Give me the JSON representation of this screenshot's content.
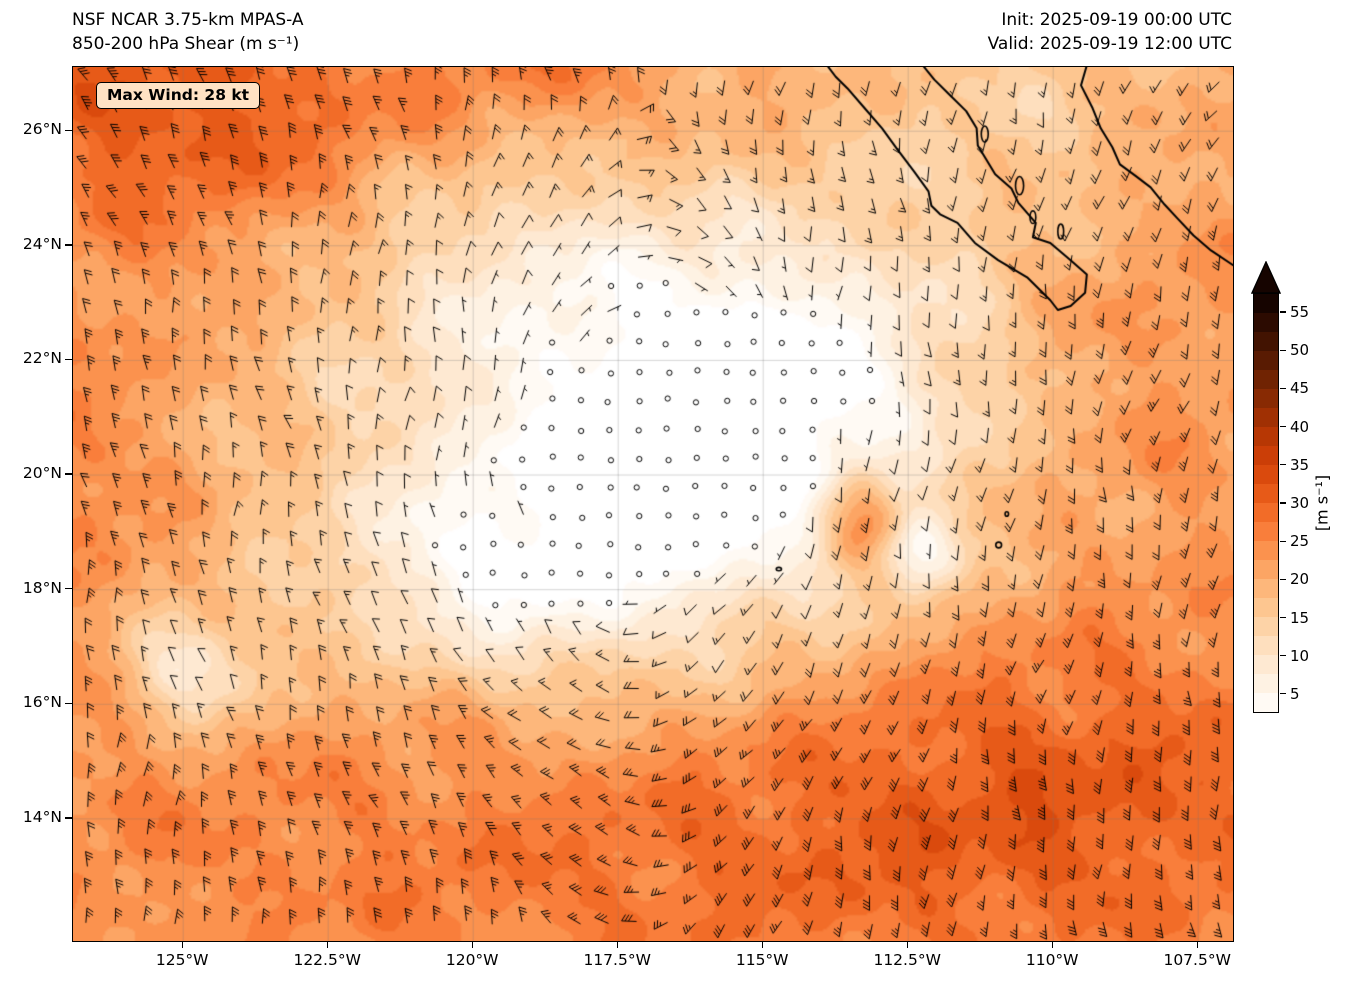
{
  "header": {
    "title_line1": "NSF NCAR 3.75-km MPAS-A",
    "title_line2": "850-200 hPa Shear (m s⁻¹)",
    "init_label": "Init: 2025-09-19 00:00 UTC",
    "valid_label": "Valid: 2025-09-19 12:00 UTC"
  },
  "badge": {
    "max_wind": "Max Wind: 28 kt",
    "bg": "#ffe2c4"
  },
  "axes": {
    "lat_ticks": [
      {
        "value": 26,
        "label": "26°N"
      },
      {
        "value": 24,
        "label": "24°N"
      },
      {
        "value": 22,
        "label": "22°N"
      },
      {
        "value": 20,
        "label": "20°N"
      },
      {
        "value": 18,
        "label": "18°N"
      },
      {
        "value": 16,
        "label": "16°N"
      },
      {
        "value": 14,
        "label": "14°N"
      }
    ],
    "lon_ticks": [
      {
        "value": -125,
        "label": "125°W"
      },
      {
        "value": -122.5,
        "label": "122.5°W"
      },
      {
        "value": -120,
        "label": "120°W"
      },
      {
        "value": -117.5,
        "label": "117.5°W"
      },
      {
        "value": -115,
        "label": "115°W"
      },
      {
        "value": -112.5,
        "label": "112.5°W"
      },
      {
        "value": -110,
        "label": "110°W"
      },
      {
        "value": -107.5,
        "label": "107.5°W"
      }
    ]
  },
  "colorbar": {
    "label": "[m s⁻¹]",
    "unit": "m s⁻¹",
    "ticks": [
      55,
      50,
      45,
      40,
      35,
      30,
      25,
      20,
      15,
      10,
      5
    ],
    "vmin": 2.5,
    "vmax": 57.5,
    "level_step": 2.5,
    "extend": "max",
    "colors": [
      "#ffffff",
      "#fffaf4",
      "#fef2e3",
      "#fee9d2",
      "#fedfbe",
      "#fdd3a7",
      "#fdc690",
      "#fdb77b",
      "#fca564",
      "#fb924e",
      "#f97e3b",
      "#f26c28",
      "#e75a18",
      "#da4a0d",
      "#cb3e07",
      "#b73704",
      "#a03003",
      "#882a03",
      "#702302",
      "#591b02",
      "#421301",
      "#2c0b01",
      "#160400"
    ]
  },
  "chart_data": {
    "type": "heatmap",
    "title": "850-200 hPa Shear",
    "units": "m s⁻¹",
    "model": "NSF NCAR 3.75-km MPAS-A",
    "init": "2025-09-19 00:00 UTC",
    "valid": "2025-09-19 12:00 UTC",
    "max_wind_kt": 28,
    "lon_range": [
      -126.9,
      -106.9
    ],
    "lat_range": [
      11.87,
      27.12
    ],
    "background_shear_ms": 20,
    "features": [
      {
        "name": "shear minimum around storm environment",
        "lon": -117.3,
        "lat": 19.7,
        "value_ms": 4
      },
      {
        "name": "low-shear pocket southwest",
        "lon": -124.9,
        "lat": 16.6,
        "value_ms": 6
      },
      {
        "name": "low-shear patch east of center",
        "lon": -112.3,
        "lat": 18.6,
        "value_ms": 8
      },
      {
        "name": "local shear maximum",
        "lon": -113.3,
        "lat": 19.3,
        "value_ms": 33
      },
      {
        "name": "high-shear band across south",
        "lon": -116.0,
        "lat": 14.0,
        "value_ms": 27
      },
      {
        "name": "high-shear region northwest corner",
        "lon": -125.5,
        "lat": 26.8,
        "value_ms": 30
      },
      {
        "name": "lighter shear over Gulf of California",
        "lon": -110.6,
        "lat": 26.0,
        "value_ms": 14
      }
    ],
    "field": {
      "base": 20,
      "noise_amp": 1.6,
      "blobs": [
        {
          "lon": -117.3,
          "lat": 19.7,
          "amp": -17,
          "sx": 3.4,
          "sy": 2.6
        },
        {
          "lon": -119.8,
          "lat": 18.2,
          "amp": -8,
          "sx": 1.9,
          "sy": 1.1
        },
        {
          "lon": -115.5,
          "lat": 20.9,
          "amp": -7,
          "sx": 1.7,
          "sy": 1.7
        },
        {
          "lon": -124.9,
          "lat": 16.6,
          "amp": -13,
          "sx": 0.95,
          "sy": 0.75
        },
        {
          "lon": -112.3,
          "lat": 18.6,
          "amp": -12,
          "sx": 0.5,
          "sy": 0.45
        },
        {
          "lon": -116.0,
          "lat": 13.4,
          "amp": 7.5,
          "sx": 9.0,
          "sy": 2.3
        },
        {
          "lon": -110.0,
          "lat": 14.9,
          "amp": 6,
          "sx": 4.0,
          "sy": 1.9
        },
        {
          "lon": -125.6,
          "lat": 26.9,
          "amp": 10,
          "sx": 2.3,
          "sy": 1.7
        },
        {
          "lon": -122.6,
          "lat": 25.6,
          "amp": 5,
          "sx": 2.2,
          "sy": 1.6
        },
        {
          "lon": -118.6,
          "lat": 27.3,
          "amp": 6,
          "sx": 1.5,
          "sy": 0.9
        },
        {
          "lon": -113.3,
          "lat": 19.3,
          "amp": 15,
          "sx": 0.5,
          "sy": 0.6
        },
        {
          "lon": -108.3,
          "lat": 22.4,
          "amp": 3.5,
          "sx": 2.6,
          "sy": 3.4
        },
        {
          "lon": -127.2,
          "lat": 20.2,
          "amp": 5,
          "sx": 1.6,
          "sy": 3.2
        },
        {
          "lon": -110.6,
          "lat": 26.1,
          "amp": -6,
          "sx": 2.1,
          "sy": 1.6
        },
        {
          "lon": -116.6,
          "lat": 22.9,
          "amp": -7,
          "sx": 3.1,
          "sy": 1.6
        },
        {
          "lon": -112.6,
          "lat": 21.6,
          "amp": -6,
          "sx": 1.9,
          "sy": 1.9
        },
        {
          "lon": -120.3,
          "lat": 24.3,
          "amp": -5,
          "sx": 2.2,
          "sy": 1.3
        }
      ]
    },
    "wind_barbs": {
      "spacing_px": 29,
      "calm_circle_threshold": 3.5,
      "half_barb": 5,
      "full_barb": 10,
      "pennant": 50,
      "swirl_center": {
        "lon": -117.3,
        "lat": 19.7
      }
    },
    "geo": {
      "coastlines": [
        [
          [
            -113.9,
            27.15
          ],
          [
            -113.75,
            26.95
          ],
          [
            -113.55,
            26.75
          ],
          [
            -113.25,
            26.4
          ],
          [
            -112.95,
            26.05
          ],
          [
            -112.7,
            25.7
          ],
          [
            -112.4,
            25.3
          ],
          [
            -112.15,
            24.95
          ],
          [
            -112.1,
            24.7
          ],
          [
            -111.95,
            24.55
          ],
          [
            -111.65,
            24.4
          ],
          [
            -111.35,
            24.05
          ],
          [
            -110.95,
            23.75
          ],
          [
            -110.45,
            23.45
          ],
          [
            -110.05,
            23.05
          ],
          [
            -109.92,
            22.88
          ],
          [
            -109.7,
            22.95
          ],
          [
            -109.45,
            23.18
          ],
          [
            -109.42,
            23.5
          ],
          [
            -109.7,
            23.75
          ],
          [
            -110.05,
            24.05
          ],
          [
            -110.35,
            24.15
          ],
          [
            -110.3,
            24.4
          ],
          [
            -110.6,
            24.75
          ],
          [
            -110.72,
            25.0
          ],
          [
            -111.0,
            25.25
          ],
          [
            -111.3,
            25.75
          ],
          [
            -111.32,
            26.05
          ],
          [
            -111.5,
            26.35
          ],
          [
            -111.8,
            26.65
          ],
          [
            -112.05,
            26.9
          ],
          [
            -112.25,
            27.15
          ]
        ],
        [
          [
            -109.42,
            27.15
          ],
          [
            -109.52,
            26.8
          ],
          [
            -109.32,
            26.4
          ],
          [
            -109.18,
            26.05
          ],
          [
            -108.98,
            25.72
          ],
          [
            -108.85,
            25.42
          ],
          [
            -108.58,
            25.22
          ],
          [
            -108.32,
            25.02
          ],
          [
            -108.08,
            24.72
          ],
          [
            -107.85,
            24.47
          ],
          [
            -107.58,
            24.18
          ],
          [
            -107.28,
            23.92
          ],
          [
            -106.88,
            23.65
          ]
        ]
      ],
      "islands": [
        {
          "name": "Isla Carmen",
          "lon": -111.18,
          "lat": 25.95,
          "rx": 0.06,
          "ry": 0.14
        },
        {
          "name": "Isla San Jose",
          "lon": -110.58,
          "lat": 25.05,
          "rx": 0.07,
          "ry": 0.16
        },
        {
          "name": "Isla Espiritu Santo",
          "lon": -110.35,
          "lat": 24.5,
          "rx": 0.05,
          "ry": 0.11
        },
        {
          "name": "Isla Cerralvo",
          "lon": -109.87,
          "lat": 24.25,
          "rx": 0.05,
          "ry": 0.13
        },
        {
          "name": "Isla Socorro",
          "lon": -110.94,
          "lat": 18.78,
          "rx": 0.05,
          "ry": 0.05
        },
        {
          "name": "Isla Clarion",
          "lon": -114.73,
          "lat": 18.36,
          "rx": 0.045,
          "ry": 0.03
        },
        {
          "name": "Isla San Benedicto",
          "lon": -110.8,
          "lat": 19.32,
          "rx": 0.03,
          "ry": 0.04
        }
      ]
    }
  }
}
